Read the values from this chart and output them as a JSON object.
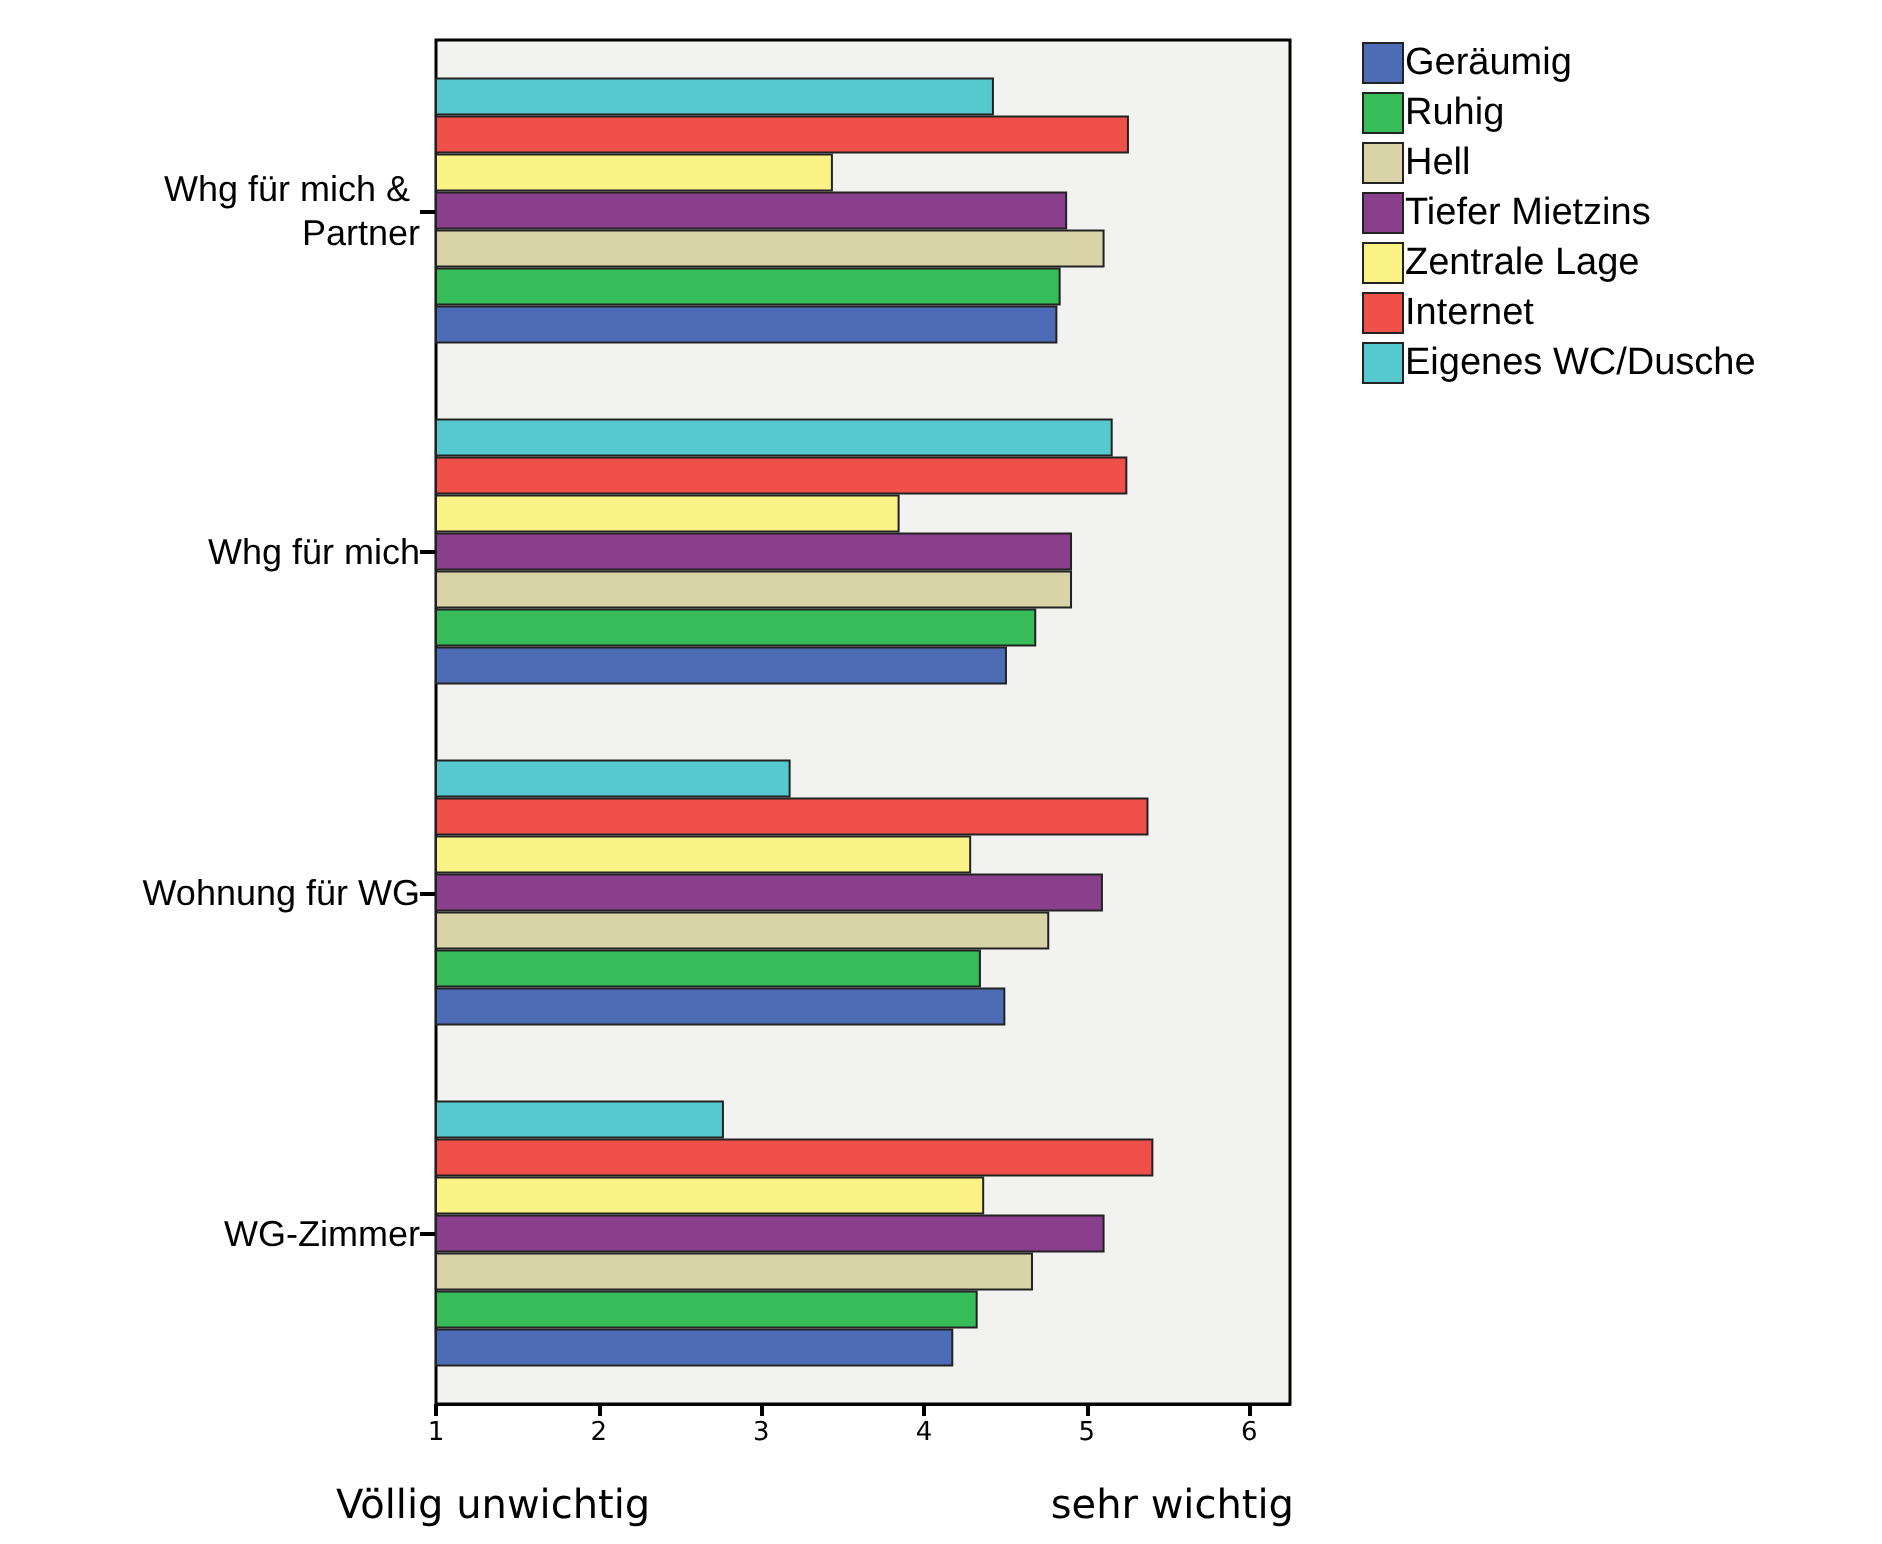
{
  "chart_data": {
    "type": "bar",
    "orientation": "horizontal",
    "categories": [
      "Whg für mich & Partner",
      "Whg für mich",
      "Wohnung für WG",
      "WG-Zimmer"
    ],
    "series": [
      {
        "name": "Geräumig",
        "color": "#4e6bb5",
        "values": [
          4.82,
          4.51,
          4.5,
          4.18
        ]
      },
      {
        "name": "Ruhig",
        "color": "#36bc59",
        "values": [
          4.84,
          4.69,
          4.35,
          4.33
        ]
      },
      {
        "name": "Hell",
        "color": "#d9d4a8",
        "values": [
          5.11,
          4.91,
          4.77,
          4.67
        ]
      },
      {
        "name": "Tiefer Mietzins",
        "color": "#8a3f8d",
        "values": [
          4.88,
          4.91,
          5.1,
          5.11
        ]
      },
      {
        "name": "Zentrale Lage",
        "color": "#fbf286",
        "values": [
          3.44,
          3.85,
          4.29,
          4.37
        ]
      },
      {
        "name": "Internet",
        "color": "#ef5049",
        "values": [
          5.26,
          5.25,
          5.38,
          5.41
        ]
      },
      {
        "name": "Eigenes WC/Dusche",
        "color": "#55c9cd",
        "values": [
          4.43,
          5.16,
          3.18,
          2.77
        ]
      }
    ],
    "xlim": [
      1,
      6.25
    ],
    "xticks": [
      1,
      2,
      3,
      4,
      5,
      6
    ],
    "grid": false,
    "legend": "top right",
    "annotations": [
      "Völlig unwichtig",
      "sehr wichtig"
    ]
  }
}
